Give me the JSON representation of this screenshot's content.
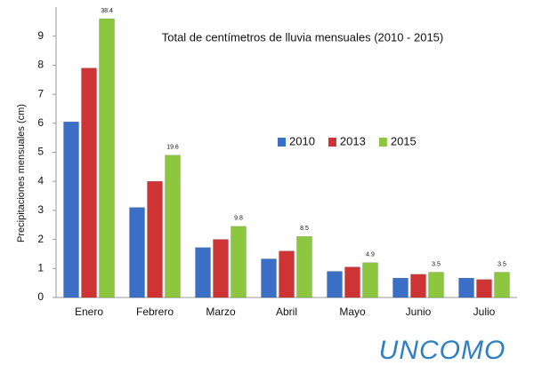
{
  "chart_data": {
    "type": "bar",
    "title": "Total de centímetros de lluvia mensuales (2010 - 2015)",
    "y_label": "Precipitaciones mensuales (cm)",
    "categories": [
      "Enero",
      "Febrero",
      "Marzo",
      "Abril",
      "Mayo",
      "Junio",
      "Julio"
    ],
    "series": [
      {
        "name": "2010",
        "color": "#3b6fc6",
        "values": [
          6.05,
          3.1,
          1.72,
          1.33,
          0.9,
          0.67,
          0.67
        ]
      },
      {
        "name": "2013",
        "color": "#cf3434",
        "values": [
          7.9,
          4.0,
          2.0,
          1.6,
          1.05,
          0.8,
          0.62
        ]
      },
      {
        "name": "2015",
        "color": "#8dc63f",
        "values": [
          9.6,
          4.9,
          2.45,
          2.1,
          1.2,
          0.87,
          0.87
        ]
      }
    ],
    "bar_top_annotations": [
      "38.4",
      "19.6",
      "9.8",
      "8.5",
      "4.9",
      "3.5",
      "3.5"
    ],
    "ylim": [
      0,
      10
    ],
    "yticks": [
      0,
      1,
      2,
      3,
      4,
      5,
      6,
      7,
      8,
      9
    ],
    "grid": false,
    "legend": "center",
    "watermark": "UNCOMO"
  }
}
